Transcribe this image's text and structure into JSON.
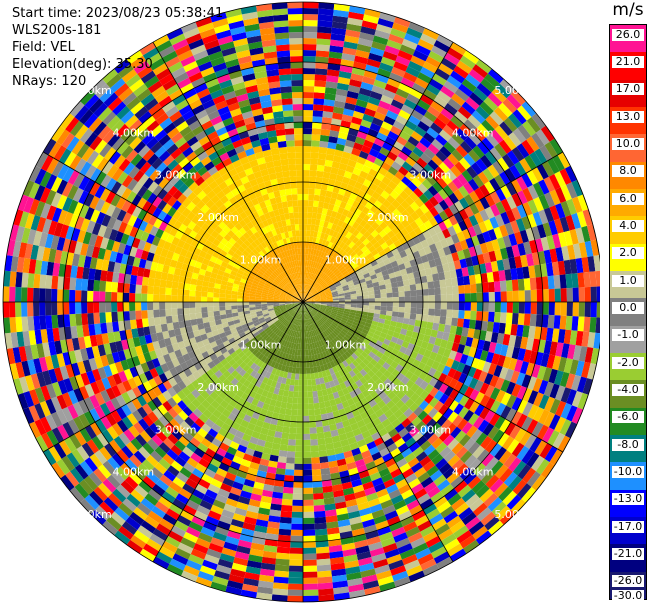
{
  "info": {
    "start_time": "Start time: 2023/08/23 05:38:41",
    "device": "WLS200s-181",
    "field": "Field: VEL",
    "elevation": "Elevation(deg): 35.30",
    "nrays": "NRays: 120"
  },
  "chart_data": {
    "type": "heatmap",
    "projection": "polar-ppi",
    "n_rays": 120,
    "max_range_km": 5.0,
    "range_rings_km": [
      1.0,
      2.0,
      3.0,
      4.0,
      5.0
    ],
    "ring_labels": [
      "1.00km",
      "2.00km",
      "3.00km",
      "4.00km",
      "5.00km"
    ],
    "colorbar": {
      "unit": "m/s",
      "ticks": [
        "26.0",
        "21.0",
        "17.0",
        "13.0",
        "10.0",
        "8.0",
        "6.0",
        "4.0",
        "2.0",
        "1.0",
        "0.0",
        "-1.0",
        "-2.0",
        "-4.0",
        "-6.0",
        "-8.0",
        "-10.0",
        "-13.0",
        "-17.0",
        "-21.0",
        "-26.0",
        "-30.0"
      ],
      "colors": [
        "#ff1493",
        "#ff0000",
        "#e60000",
        "#ff3300",
        "#ff6633",
        "#ff8800",
        "#ffaa00",
        "#ffcc00",
        "#ffff00",
        "#c8c896",
        "#808080",
        "#a0a0a0",
        "#9acd32",
        "#6b8e23",
        "#228b22",
        "#008080",
        "#1e90ff",
        "#0000ff",
        "#0000cd",
        "#000080",
        "#191970"
      ]
    },
    "sectors": [
      {
        "azimuth_from_deg": 270,
        "azimuth_to_deg": 90,
        "range_km": [
          0.0,
          1.0
        ],
        "velocity_ms": 5.0
      },
      {
        "azimuth_from_deg": 270,
        "azimuth_to_deg": 90,
        "range_km": [
          1.0,
          2.6
        ],
        "velocity_ms": 2.5
      },
      {
        "azimuth_from_deg": 60,
        "azimuth_to_deg": 100,
        "range_km": [
          0.5,
          2.6
        ],
        "velocity_ms": 0.0
      },
      {
        "azimuth_from_deg": 100,
        "azimuth_to_deg": 260,
        "range_km": [
          0.0,
          1.2
        ],
        "velocity_ms": -5.0
      },
      {
        "azimuth_from_deg": 100,
        "azimuth_to_deg": 260,
        "range_km": [
          1.2,
          2.6
        ],
        "velocity_ms": -2.5
      },
      {
        "azimuth_from_deg": 235,
        "azimuth_to_deg": 270,
        "range_km": [
          0.5,
          2.6
        ],
        "velocity_ms": 0.0
      }
    ],
    "noise_range_km": [
      2.6,
      5.0
    ]
  }
}
